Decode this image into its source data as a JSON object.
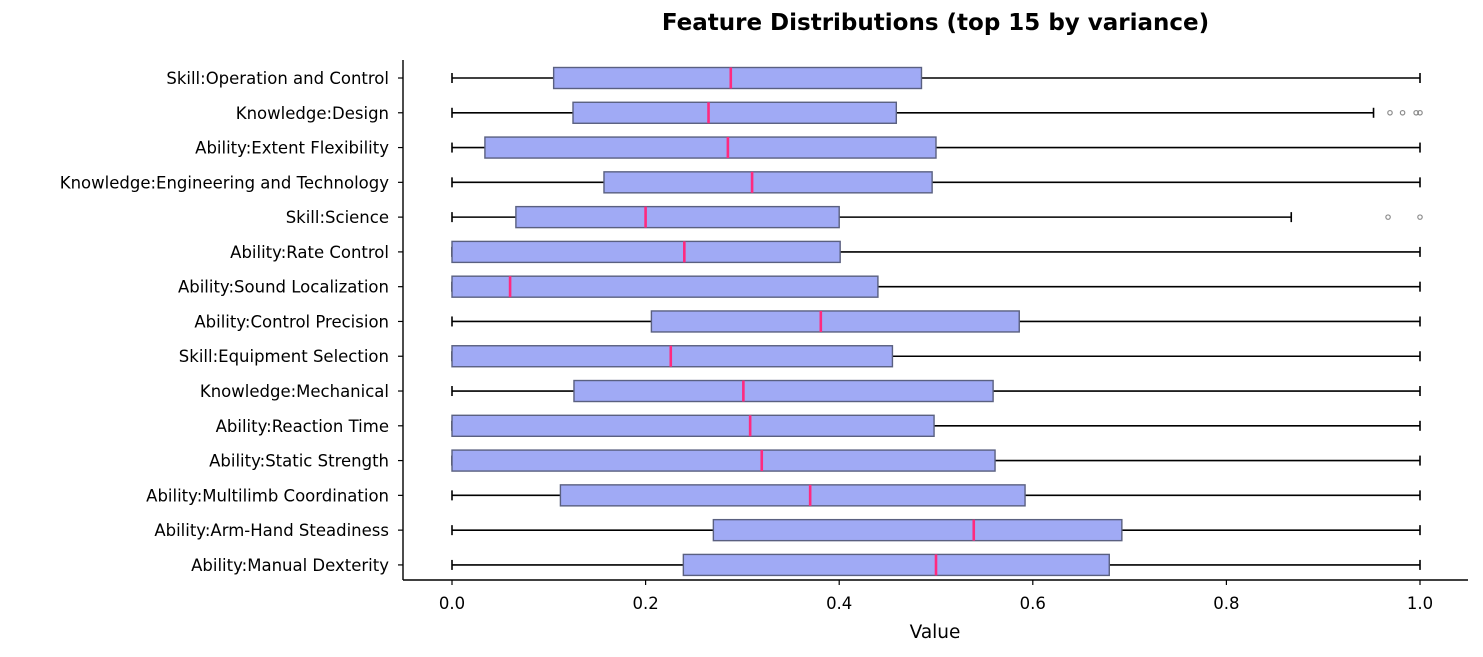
{
  "chart_data": {
    "type": "boxplot",
    "orientation": "horizontal",
    "title": "Feature Distributions (top 15 by variance)",
    "xlabel": "Value",
    "ylabel": "",
    "xlim": [
      -0.05,
      1.05
    ],
    "xticks": [
      0.0,
      0.2,
      0.4,
      0.6,
      0.8,
      1.0
    ],
    "xtick_labels": [
      "0.0",
      "0.2",
      "0.4",
      "0.6",
      "0.8",
      "1.0"
    ],
    "grid": false,
    "colors": {
      "box_fill": "#a0aaf5",
      "box_edge": "#5a6080",
      "median": "#ff2a7f",
      "whisker": "#000000",
      "outlier": "#666666"
    },
    "categories": [
      "Skill:Operation and Control",
      "Knowledge:Design",
      "Ability:Extent Flexibility",
      "Knowledge:Engineering and Technology",
      "Skill:Science",
      "Ability:Rate Control",
      "Ability:Sound Localization",
      "Ability:Control Precision",
      "Skill:Equipment Selection",
      "Knowledge:Mechanical",
      "Ability:Reaction Time",
      "Ability:Static Strength",
      "Ability:Multilimb Coordination",
      "Ability:Arm-Hand Steadiness",
      "Ability:Manual Dexterity"
    ],
    "boxes": [
      {
        "whisker_low": 0.0,
        "q1": 0.105,
        "median": 0.288,
        "q3": 0.485,
        "whisker_high": 1.0,
        "outliers": []
      },
      {
        "whisker_low": 0.0,
        "q1": 0.125,
        "median": 0.265,
        "q3": 0.459,
        "whisker_high": 0.952,
        "outliers": [
          0.969,
          0.982,
          0.996,
          1.0
        ]
      },
      {
        "whisker_low": 0.0,
        "q1": 0.034,
        "median": 0.285,
        "q3": 0.5,
        "whisker_high": 1.0,
        "outliers": []
      },
      {
        "whisker_low": 0.0,
        "q1": 0.157,
        "median": 0.31,
        "q3": 0.496,
        "whisker_high": 1.0,
        "outliers": []
      },
      {
        "whisker_low": 0.0,
        "q1": 0.066,
        "median": 0.2,
        "q3": 0.4,
        "whisker_high": 0.867,
        "outliers": [
          0.967,
          1.0
        ]
      },
      {
        "whisker_low": 0.0,
        "q1": 0.0,
        "median": 0.24,
        "q3": 0.401,
        "whisker_high": 1.0,
        "outliers": []
      },
      {
        "whisker_low": 0.0,
        "q1": 0.0,
        "median": 0.06,
        "q3": 0.44,
        "whisker_high": 1.0,
        "outliers": []
      },
      {
        "whisker_low": 0.0,
        "q1": 0.206,
        "median": 0.381,
        "q3": 0.586,
        "whisker_high": 1.0,
        "outliers": []
      },
      {
        "whisker_low": 0.0,
        "q1": 0.0,
        "median": 0.226,
        "q3": 0.455,
        "whisker_high": 1.0,
        "outliers": []
      },
      {
        "whisker_low": 0.0,
        "q1": 0.126,
        "median": 0.301,
        "q3": 0.559,
        "whisker_high": 1.0,
        "outliers": []
      },
      {
        "whisker_low": 0.0,
        "q1": 0.0,
        "median": 0.308,
        "q3": 0.498,
        "whisker_high": 1.0,
        "outliers": []
      },
      {
        "whisker_low": 0.0,
        "q1": 0.0,
        "median": 0.32,
        "q3": 0.561,
        "whisker_high": 1.0,
        "outliers": []
      },
      {
        "whisker_low": 0.0,
        "q1": 0.112,
        "median": 0.37,
        "q3": 0.592,
        "whisker_high": 1.0,
        "outliers": []
      },
      {
        "whisker_low": 0.0,
        "q1": 0.27,
        "median": 0.539,
        "q3": 0.692,
        "whisker_high": 1.0,
        "outliers": []
      },
      {
        "whisker_low": 0.0,
        "q1": 0.239,
        "median": 0.5,
        "q3": 0.679,
        "whisker_high": 1.0,
        "outliers": []
      }
    ]
  }
}
